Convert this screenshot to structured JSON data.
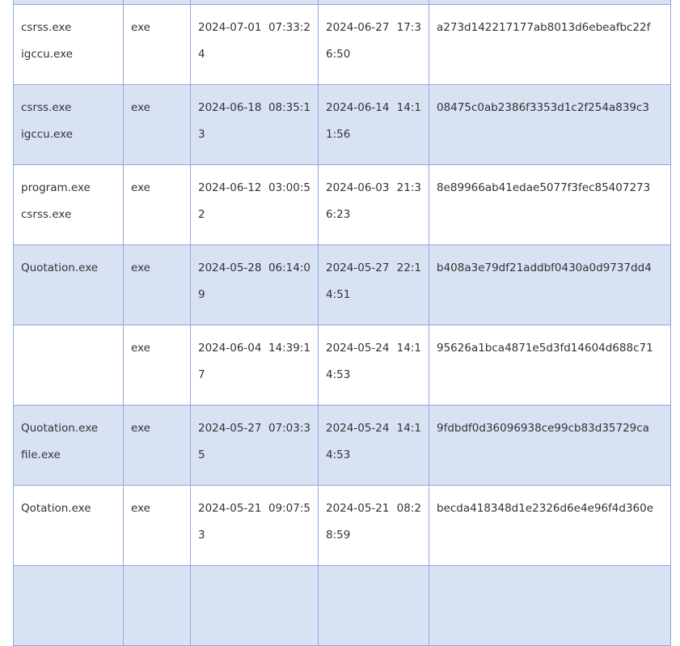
{
  "colors": {
    "border": "#8eaadb",
    "alt_row": "#d9e2f3",
    "text": "#333333"
  },
  "rows": [
    {
      "names": [
        "",
        ""
      ],
      "type": "",
      "created": "",
      "modified": "",
      "hash": ""
    },
    {
      "names": [
        "csrss.exe",
        "igccu.exe"
      ],
      "type": "exe",
      "created": "2024-07-01 07:33:24",
      "modified": "2024-06-27 17:36:50",
      "hash": "a273d142217177ab8013d6ebeafbc22f"
    },
    {
      "names": [
        "csrss.exe",
        "igccu.exe"
      ],
      "type": "exe",
      "created": "2024-06-18 08:35:13",
      "modified": "2024-06-14 14:11:56",
      "hash": "08475c0ab2386f3353d1c2f254a839c3"
    },
    {
      "names": [
        "program.exe",
        "csrss.exe"
      ],
      "type": "exe",
      "created": "2024-06-12 03:00:52",
      "modified": "2024-06-03 21:36:23",
      "hash": "8e89966ab41edae5077f3fec85407273"
    },
    {
      "names": [
        "Quotation.exe",
        ""
      ],
      "type": "exe",
      "created": "2024-05-28 06:14:09",
      "modified": "2024-05-27 22:14:51",
      "hash": "b408a3e79df21addbf0430a0d9737dd4"
    },
    {
      "names": [
        "",
        ""
      ],
      "type": "exe",
      "created": "2024-06-04 14:39:17",
      "modified": "2024-05-24 14:14:53",
      "hash": "95626a1bca4871e5d3fd14604d688c71"
    },
    {
      "names": [
        "Quotation.exe",
        "file.exe"
      ],
      "type": "exe",
      "created": "2024-05-27 07:03:35",
      "modified": "2024-05-24 14:14:53",
      "hash": "9fdbdf0d36096938ce99cb83d35729ca"
    },
    {
      "names": [
        "Qotation.exe",
        ""
      ],
      "type": "exe",
      "created": "2024-05-21 09:07:53",
      "modified": "2024-05-21 08:28:59",
      "hash": "becda418348d1e2326d6e4e96f4d360e"
    },
    {
      "names": [
        "",
        ""
      ],
      "type": "",
      "created": "",
      "modified": "",
      "hash": ""
    }
  ]
}
